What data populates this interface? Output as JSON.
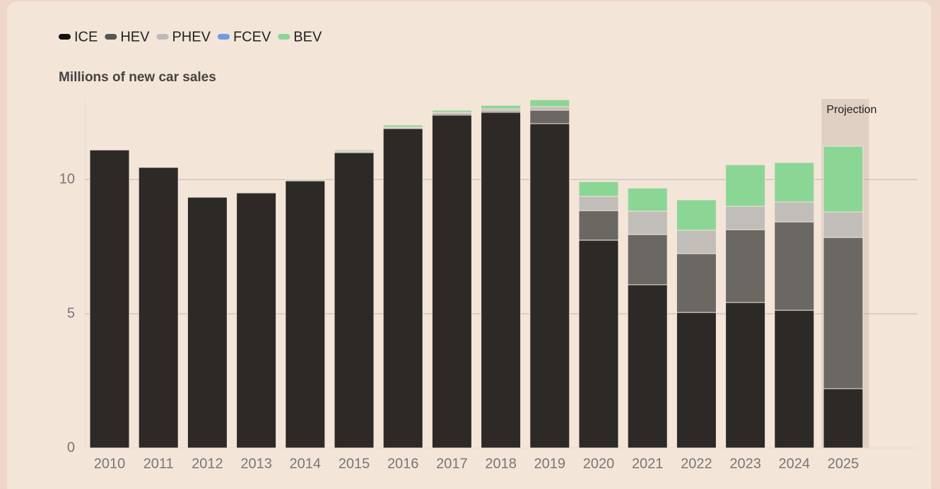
{
  "chart_data": {
    "type": "bar",
    "stacked": true,
    "y_axis_label": "Millions of new car sales",
    "categories": [
      "2010",
      "2011",
      "2012",
      "2013",
      "2014",
      "2015",
      "2016",
      "2017",
      "2018",
      "2019",
      "2020",
      "2021",
      "2022",
      "2023",
      "2024",
      "2025"
    ],
    "series": [
      {
        "name": "ICE",
        "color": "#2d2926",
        "legend_color": "#111111",
        "values": [
          11.1,
          10.45,
          9.34,
          9.5,
          9.95,
          11.0,
          11.9,
          12.4,
          12.5,
          12.08,
          7.74,
          6.08,
          5.05,
          5.42,
          5.13,
          2.21
        ]
      },
      {
        "name": "HEV",
        "color": "#6b6763",
        "legend_color": "#555555",
        "values": [
          0,
          0,
          0,
          0,
          0,
          0,
          0,
          0.05,
          0.05,
          0.5,
          1.1,
          1.87,
          2.19,
          2.71,
          3.29,
          5.63
        ]
      },
      {
        "name": "PHEV",
        "color": "#c1bdb9",
        "legend_color": "#bbbbbb",
        "values": [
          0,
          0,
          0,
          0.03,
          0,
          0.05,
          0.05,
          0.05,
          0.08,
          0.13,
          0.53,
          0.87,
          0.87,
          0.87,
          0.74,
          0.95
        ]
      },
      {
        "name": "FCEV",
        "color": "#6f9ce8",
        "legend_color": "#6f9ce8",
        "values": [
          0,
          0,
          0,
          0,
          0,
          0,
          0,
          0,
          0,
          0,
          0,
          0,
          0,
          0,
          0,
          0
        ]
      },
      {
        "name": "BEV",
        "color": "#8bd694",
        "legend_color": "#8bd694",
        "values": [
          0,
          0,
          0,
          0,
          0.05,
          0.05,
          0.08,
          0.08,
          0.13,
          0.26,
          0.55,
          0.86,
          1.13,
          1.55,
          1.47,
          2.45
        ]
      }
    ],
    "annotations": [
      {
        "text": "Projection",
        "x": "2025"
      }
    ],
    "ylim": [
      0,
      13
    ],
    "yticks": [
      0,
      5,
      10
    ],
    "grid": true,
    "legend": "top-left"
  }
}
